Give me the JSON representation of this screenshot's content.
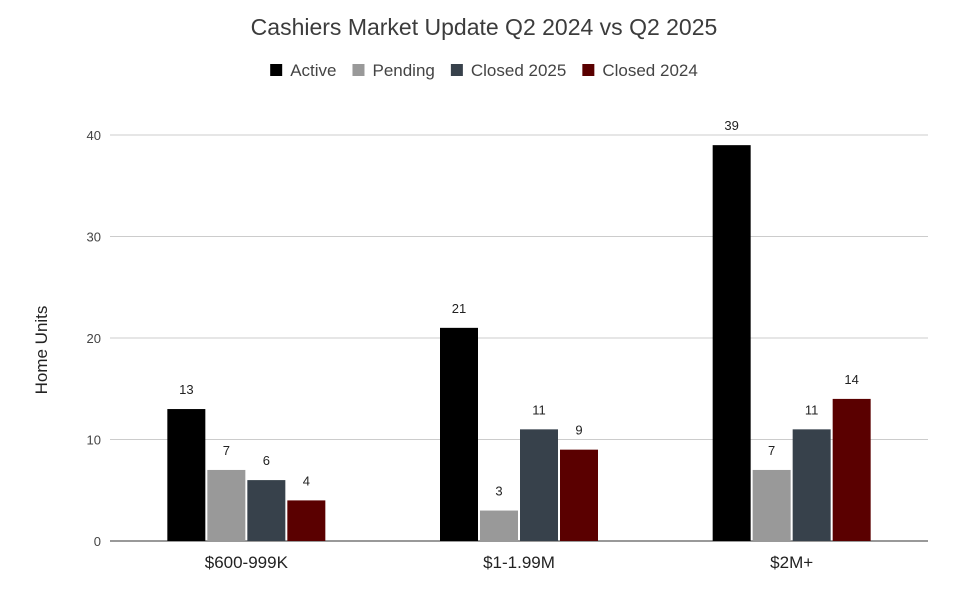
{
  "chart_data": {
    "type": "bar",
    "title": "Cashiers Market Update Q2 2024 vs Q2 2025",
    "xlabel": "",
    "ylabel": "Home Units",
    "categories": [
      "$600-999K",
      "$1-1.99M",
      "$2M+"
    ],
    "ylim": [
      0,
      40
    ],
    "yticks": [
      0,
      10,
      20,
      30,
      40
    ],
    "grid": true,
    "legend_position": "top",
    "series": [
      {
        "name": "Active",
        "color": "#000000",
        "values": [
          13,
          21,
          39
        ]
      },
      {
        "name": "Pending",
        "color": "#999999",
        "values": [
          7,
          3,
          7
        ]
      },
      {
        "name": "Closed 2025",
        "color": "#37414b",
        "values": [
          6,
          11,
          11
        ]
      },
      {
        "name": "Closed 2024",
        "color": "#5a0000",
        "values": [
          4,
          9,
          14
        ]
      }
    ]
  }
}
